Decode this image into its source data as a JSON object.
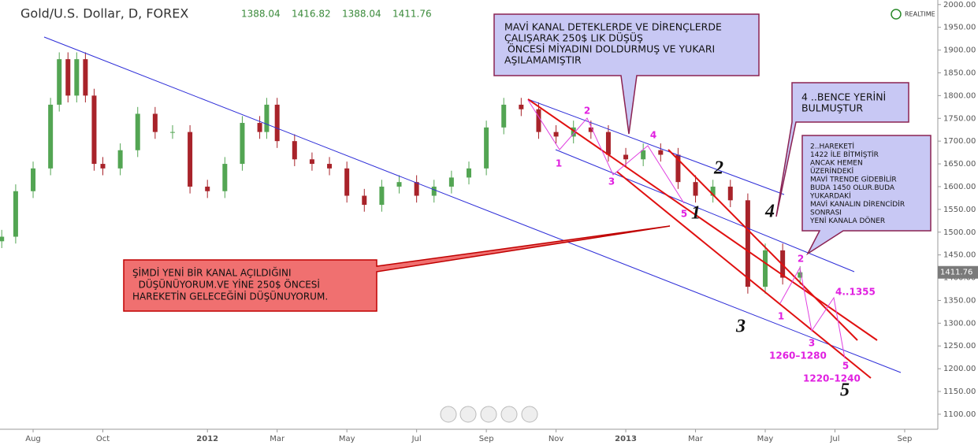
{
  "header": {
    "symbol": "Gold/U.S. Dollar, D, FOREX",
    "ohlc": [
      "1388.04",
      "1416.82",
      "1388.04",
      "1411.76"
    ],
    "realtime": "REALTIME"
  },
  "chart_data": {
    "type": "candlestick",
    "up_color": "#53a553",
    "down_color": "#a8232a",
    "x": [
      -0.9,
      -0.5,
      0,
      0.5,
      0.75,
      1,
      1.25,
      1.5,
      1.75,
      2,
      2.5,
      3,
      3.5,
      4,
      4.5,
      5,
      5.5,
      6,
      6.5,
      6.7,
      7,
      7.5,
      8,
      8.5,
      9,
      9.5,
      10,
      10.5,
      11,
      11.5,
      12,
      12.5,
      13,
      13.5,
      14,
      14.5,
      15,
      15.5,
      16,
      16.5,
      17,
      17.5,
      18,
      18.5,
      19,
      19.5,
      20,
      20.5,
      21,
      21.5,
      22
    ],
    "open": [
      1480,
      1490,
      1590,
      1640,
      1780,
      1880,
      1800,
      1880,
      1800,
      1650,
      1640,
      1680,
      1760,
      1720,
      1720,
      1600,
      1590,
      1650,
      1740,
      1720,
      1780,
      1700,
      1660,
      1650,
      1640,
      1580,
      1560,
      1600,
      1610,
      1580,
      1600,
      1620,
      1640,
      1730,
      1780,
      1770,
      1720,
      1710,
      1730,
      1720,
      1670,
      1660,
      1680,
      1670,
      1610,
      1580,
      1600,
      1570,
      1380,
      1460,
      1400
    ],
    "high": [
      1505,
      1605,
      1655,
      1795,
      1895,
      1895,
      1895,
      1895,
      1815,
      1665,
      1695,
      1775,
      1775,
      1735,
      1735,
      1615,
      1665,
      1755,
      1755,
      1795,
      1795,
      1715,
      1675,
      1665,
      1655,
      1595,
      1615,
      1625,
      1625,
      1615,
      1635,
      1655,
      1745,
      1795,
      1795,
      1785,
      1735,
      1745,
      1745,
      1735,
      1685,
      1695,
      1695,
      1685,
      1625,
      1615,
      1615,
      1585,
      1475,
      1475,
      1425
    ],
    "low": [
      1465,
      1475,
      1575,
      1625,
      1765,
      1785,
      1785,
      1785,
      1635,
      1625,
      1625,
      1665,
      1705,
      1705,
      1585,
      1575,
      1575,
      1635,
      1705,
      1705,
      1685,
      1645,
      1635,
      1625,
      1565,
      1545,
      1545,
      1585,
      1565,
      1565,
      1585,
      1605,
      1625,
      1715,
      1755,
      1705,
      1695,
      1695,
      1705,
      1655,
      1645,
      1645,
      1655,
      1595,
      1565,
      1565,
      1555,
      1365,
      1365,
      1385,
      1385
    ],
    "close": [
      1490,
      1590,
      1640,
      1780,
      1880,
      1800,
      1880,
      1800,
      1650,
      1640,
      1680,
      1760,
      1720,
      1720,
      1600,
      1590,
      1650,
      1740,
      1720,
      1780,
      1700,
      1660,
      1650,
      1640,
      1580,
      1560,
      1600,
      1610,
      1580,
      1600,
      1620,
      1640,
      1730,
      1780,
      1770,
      1720,
      1710,
      1730,
      1720,
      1670,
      1660,
      1680,
      1670,
      1610,
      1580,
      1600,
      1570,
      1380,
      1460,
      1400,
      1411.76
    ],
    "xlim": [
      -0.95,
      25.95
    ],
    "xticks": [
      {
        "value": 0,
        "label": "Aug"
      },
      {
        "value": 2,
        "label": "Oct"
      },
      {
        "value": 5,
        "label": "2012"
      },
      {
        "value": 7,
        "label": "Mar"
      },
      {
        "value": 9,
        "label": "May"
      },
      {
        "value": 11,
        "label": "Jul"
      },
      {
        "value": 13,
        "label": "Sep"
      },
      {
        "value": 15,
        "label": "Nov"
      },
      {
        "value": 17,
        "label": "2013"
      },
      {
        "value": 19,
        "label": "Mar"
      },
      {
        "value": 21,
        "label": "May"
      },
      {
        "value": 23,
        "label": "Jul"
      },
      {
        "value": 25,
        "label": "Sep"
      }
    ],
    "ylim": [
      1067,
      2010
    ],
    "yticks": [
      {
        "value": 1100,
        "label": "1100.00"
      },
      {
        "value": 1150,
        "label": "1150.00"
      },
      {
        "value": 1200,
        "label": "1200.00"
      },
      {
        "value": 1250,
        "label": "1250.00"
      },
      {
        "value": 1300,
        "label": "1300.00"
      },
      {
        "value": 1350,
        "label": "1350.00"
      },
      {
        "value": 1400,
        "label": "1400.00"
      },
      {
        "value": 1450,
        "label": "1450.00"
      },
      {
        "value": 1500,
        "label": "1500.00"
      },
      {
        "value": 1550,
        "label": "1550.00"
      },
      {
        "value": 1600,
        "label": "1600.00"
      },
      {
        "value": 1650,
        "label": "1650.00"
      },
      {
        "value": 1700,
        "label": "1700.00"
      },
      {
        "value": 1750,
        "label": "1750.00"
      },
      {
        "value": 1800,
        "label": "1800.00"
      },
      {
        "value": 1850,
        "label": "1850.00"
      },
      {
        "value": 1900,
        "label": "1900.00"
      },
      {
        "value": 1950,
        "label": "1950.00"
      },
      {
        "value": 2000,
        "label": "2000.00"
      }
    ],
    "last_price": {
      "value": 1411.76,
      "label": "1411.76"
    }
  },
  "annotations": {
    "callout_top": [
      "MAVİ KANAL DETEKLERDE VE DİRENÇLERDE",
      "ÇALIŞARAK 250$ LIK DÜŞÜŞ",
      " ÖNCESİ MİYADINI DOLDURMUŞ VE YUKARI",
      "AŞILAMAMIŞTIR"
    ],
    "callout_four": [
      "4 ..BENCE YERİNİ",
      "BULMUŞTUR"
    ],
    "callout_two": [
      "2..HAREKETİ",
      "1422 İLE BİTMİŞTİR",
      "ANCAK HEMEN",
      "ÜZERİNDEKİ",
      "MAVİ TRENDE GİDEBİLİR",
      "BUDA 1450 OLUR.BUDA",
      "YUKARDAKİ",
      "MAVİ KANALIN DİRENCİDİR",
      "SONRASI",
      "YENİ KANALA DÖNER"
    ],
    "callout_red": [
      "ŞİMDİ YENİ BİR KANAL AÇILDIĞINI",
      "  DÜŞÜNÜYORUM.VE YİNE 250$ ÖNCESİ",
      "HAREKETİN GELECEĞİNİ DÜŞÜNUYORUM."
    ],
    "pink_labels": [
      "1",
      "2",
      "3",
      "4",
      "5",
      "1",
      "2",
      "3",
      "5",
      "4..1355",
      "1260–1280",
      "1220–1240"
    ],
    "black_labels": [
      "1",
      "2",
      "3",
      "4",
      "5"
    ]
  }
}
